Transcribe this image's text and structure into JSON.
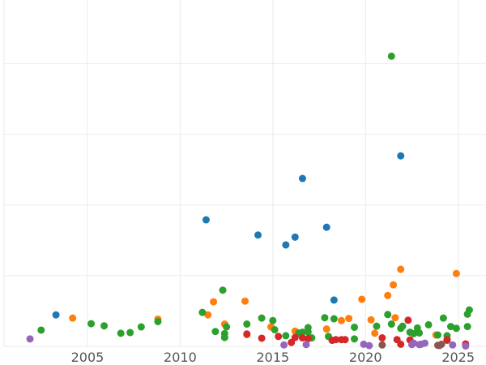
{
  "chart_data": {
    "type": "scatter",
    "title": "",
    "xlabel": "",
    "ylabel": "",
    "grid": true,
    "legend": "none",
    "xlim": [
      2000.5,
      2026.5
    ],
    "ylim": [
      0,
      98
    ],
    "x_ticks": [
      2005,
      2010,
      2015,
      2020,
      2025
    ],
    "x_tick_labels": [
      "2005",
      "2010",
      "2015",
      "2020",
      "2025"
    ],
    "y_gridlines": [
      0,
      20,
      40,
      60,
      80
    ],
    "series": [
      {
        "color": "#1f77b4",
        "points": [
          [
            2003.3,
            8.9
          ],
          [
            2011.4,
            35.8
          ],
          [
            2014.2,
            31.5
          ],
          [
            2015.7,
            28.7
          ],
          [
            2016.2,
            30.9
          ],
          [
            2016.6,
            47.5
          ],
          [
            2017.9,
            33.7
          ],
          [
            2018.3,
            13.1
          ],
          [
            2021.9,
            53.9
          ]
        ]
      },
      {
        "color": "#ff7f0e",
        "points": [
          [
            2004.2,
            8.0
          ],
          [
            2008.8,
            7.7
          ],
          [
            2011.5,
            8.9
          ],
          [
            2011.8,
            12.6
          ],
          [
            2012.4,
            6.3
          ],
          [
            2013.5,
            12.8
          ],
          [
            2013.6,
            3.3
          ],
          [
            2014.9,
            5.5
          ],
          [
            2016.2,
            4.3
          ],
          [
            2017.9,
            4.9
          ],
          [
            2018.7,
            7.3
          ],
          [
            2019.1,
            7.9
          ],
          [
            2019.8,
            13.3
          ],
          [
            2020.3,
            7.5
          ],
          [
            2020.5,
            3.7
          ],
          [
            2021.2,
            14.4
          ],
          [
            2021.5,
            17.4
          ],
          [
            2021.6,
            8.1
          ],
          [
            2021.9,
            21.8
          ],
          [
            2023.8,
            3.2
          ],
          [
            2024.9,
            20.6
          ]
        ]
      },
      {
        "color": "#2ca02c",
        "points": [
          [
            2002.5,
            4.6
          ],
          [
            2005.2,
            6.4
          ],
          [
            2005.9,
            5.8
          ],
          [
            2006.8,
            3.7
          ],
          [
            2007.3,
            3.9
          ],
          [
            2007.9,
            5.5
          ],
          [
            2008.8,
            7.0
          ],
          [
            2011.2,
            9.6
          ],
          [
            2011.9,
            4.2
          ],
          [
            2012.3,
            15.9
          ],
          [
            2012.4,
            3.6
          ],
          [
            2012.4,
            2.5
          ],
          [
            2012.5,
            5.5
          ],
          [
            2013.6,
            6.3
          ],
          [
            2014.4,
            8.0
          ],
          [
            2015.0,
            7.3
          ],
          [
            2015.1,
            4.7
          ],
          [
            2015.7,
            3.0
          ],
          [
            2016.4,
            3.8
          ],
          [
            2016.6,
            4.0
          ],
          [
            2016.9,
            5.3
          ],
          [
            2016.9,
            4.1
          ],
          [
            2017.1,
            2.4
          ],
          [
            2017.8,
            8.1
          ],
          [
            2018.0,
            2.8
          ],
          [
            2018.3,
            7.8
          ],
          [
            2019.4,
            5.4
          ],
          [
            2019.4,
            2.1
          ],
          [
            2020.6,
            5.7
          ],
          [
            2021.2,
            9.0
          ],
          [
            2021.4,
            6.3
          ],
          [
            2021.4,
            82.1
          ],
          [
            2021.9,
            5.1
          ],
          [
            2022.0,
            5.7
          ],
          [
            2022.4,
            4.0
          ],
          [
            2022.6,
            3.6
          ],
          [
            2022.8,
            5.2
          ],
          [
            2022.9,
            3.8
          ],
          [
            2023.4,
            6.1
          ],
          [
            2023.9,
            3.2
          ],
          [
            2024.2,
            8.0
          ],
          [
            2024.4,
            1.7
          ],
          [
            2024.4,
            3.0
          ],
          [
            2024.6,
            5.6
          ],
          [
            2024.9,
            5.1
          ],
          [
            2025.5,
            5.6
          ],
          [
            2025.5,
            9.1
          ],
          [
            2025.6,
            10.3
          ]
        ]
      },
      {
        "color": "#d62728",
        "points": [
          [
            2013.6,
            3.5
          ],
          [
            2014.4,
            2.3
          ],
          [
            2015.3,
            2.8
          ],
          [
            2016.0,
            1.1
          ],
          [
            2016.2,
            2.5
          ],
          [
            2016.6,
            2.4
          ],
          [
            2016.9,
            2.2
          ],
          [
            2018.2,
            1.7
          ],
          [
            2018.4,
            1.9
          ],
          [
            2018.7,
            1.9
          ],
          [
            2018.9,
            1.9
          ],
          [
            2020.9,
            2.4
          ],
          [
            2021.7,
            1.9
          ],
          [
            2021.9,
            0.6
          ],
          [
            2022.3,
            7.4
          ],
          [
            2022.4,
            1.8
          ],
          [
            2024.4,
            1.9
          ],
          [
            2025.4,
            0.7
          ]
        ]
      },
      {
        "color": "#9467bd",
        "points": [
          [
            2001.9,
            2.1
          ],
          [
            2015.6,
            0.4
          ],
          [
            2016.8,
            0.5
          ],
          [
            2019.9,
            0.6
          ],
          [
            2020.2,
            0.2
          ],
          [
            2022.5,
            0.5
          ],
          [
            2022.6,
            0.9
          ],
          [
            2022.9,
            0.5
          ],
          [
            2023.0,
            0.6
          ],
          [
            2023.2,
            0.9
          ],
          [
            2024.0,
            0.2
          ],
          [
            2024.7,
            0.4
          ],
          [
            2025.4,
            0.1
          ]
        ]
      },
      {
        "color": "#8c564b",
        "points": [
          [
            2020.9,
            0.4
          ],
          [
            2023.9,
            0.3
          ],
          [
            2024.1,
            0.6
          ]
        ]
      }
    ]
  }
}
